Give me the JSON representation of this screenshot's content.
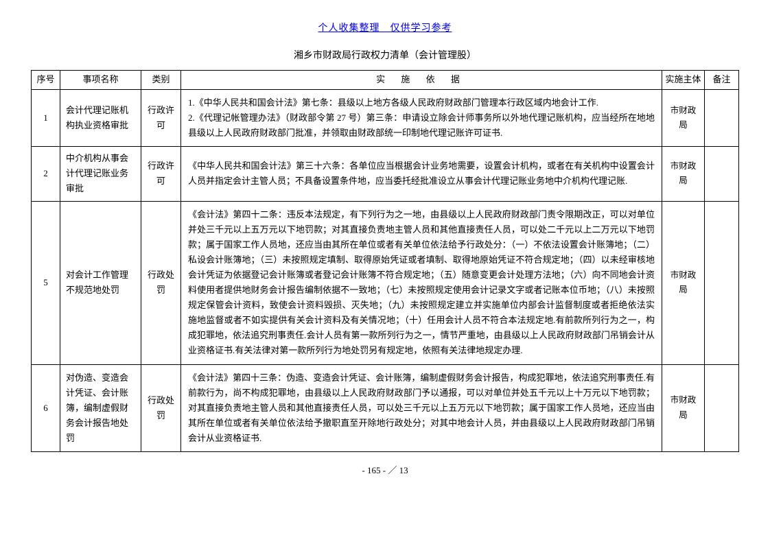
{
  "header": {
    "link_text": "个人收集整理　仅供学习参考"
  },
  "title": "湘乡市财政局行政权力清单（会计管理股）",
  "table": {
    "columns": {
      "seq": "序号",
      "name": "事项名称",
      "type": "类别",
      "basis": "实 施 依 据",
      "body": "实施主体",
      "note": "备注"
    },
    "rows": [
      {
        "seq": "1",
        "name": "会计代理记账机构执业资格审批",
        "type": "行政许可",
        "basis": "1.《中华人民共和国会计法》第七条：县级以上地方各级人民政府财政部门管理本行政区域内地会计工作.\n2.《代理记帐管理办法》（财政部令第 27 号）第三条：申请设立除会计师事务所以外地代理记账机构，应当经所在地地县级以上人民政府财政部门批准，并领取由财政部统一印制地代理记账许可证书.",
        "body": "市财政局",
        "note": ""
      },
      {
        "seq": "2",
        "name": "中介机构从事会计代理记账业务审批",
        "type": "行政许可",
        "basis": "《中华人民共和国会计法》第三十六条：各单位应当根据会计业务地需要，设置会计机构，或者在有关机构中设置会计人员并指定会计主管人员；不具备设置条件地，应当委托经批准设立从事会计代理记账业务地中介机构代理记账.",
        "body": "市财政局",
        "note": ""
      },
      {
        "seq": "5",
        "name": "对会计工作管理不规范地处罚",
        "type": "行政处罚",
        "basis": "《会计法》第四十二条：违反本法规定，有下列行为之一地，由县级以上人民政府财政部门责令限期改正，可以对单位并处三千元以上五万元以下地罚款；对其直接负责地主管人员和其他直接责任人员，可以处二千元以上二万元以下地罚款；属于国家工作人员地，还应当由其所在单位或者有关单位依法给予行政处分：（一）不依法设置会计账簿地；（二）私设会计账簿地；（三）未按照规定填制、取得原始凭证或者填制、取得地原始凭证不符合规定地；（四）以未经审核地会计凭证为依据登记会计账簿或者登记会计账簿不符合规定地；（五）随意变更会计处理方法地；（六）向不同地会计资料使用者提供地财务会计报告编制依据不一致地；（七）未按照规定使用会计记录文字或者记账本位币地；（八）未按照规定保管会计资料，致使会计资料毁损、灭失地；（九）未按照规定建立并实施单位内部会计监督制度或者拒绝依法实施地监督或者不如实提供有关会计资料及有关情况地；（十）任用会计人员不符合本法规定地.有前款所列行为之一，构成犯罪地，依法追究刑事责任.会计人员有第一款所列行为之一，情节严重地，由县级以上人民政府财政部门吊销会计从业资格证书.有关法律对第一款所列行为地处罚另有规定地，依照有关法律地规定办理.",
        "body": "市财政局",
        "note": ""
      },
      {
        "seq": "6",
        "name": "对伪造、变造会计凭证、会计账簿，编制虚假财务会计报告地处罚",
        "type": "行政处罚",
        "basis": "《会计法》第四十三条：伪造、变造会计凭证、会计账簿，编制虚假财务会计报告，构成犯罪地，依法追究刑事责任.有前款行为，尚不构成犯罪地，由县级以上人民政府财政部门予以通报，可以对单位并处五千元以上十万元以下地罚款；对其直接负责地主管人员和其他直接责任人员，可以处三千元以上五万元以下地罚款；属于国家工作人员地，还应当由其所在单位或者有关单位依法给予撤职直至开除地行政处分；对其中地会计人员，并由县级以上人民政府财政部门吊销会计从业资格证书.",
        "body": "市财政局",
        "note": ""
      }
    ]
  },
  "footer": {
    "page_text": "- 165 - ／ 13"
  }
}
